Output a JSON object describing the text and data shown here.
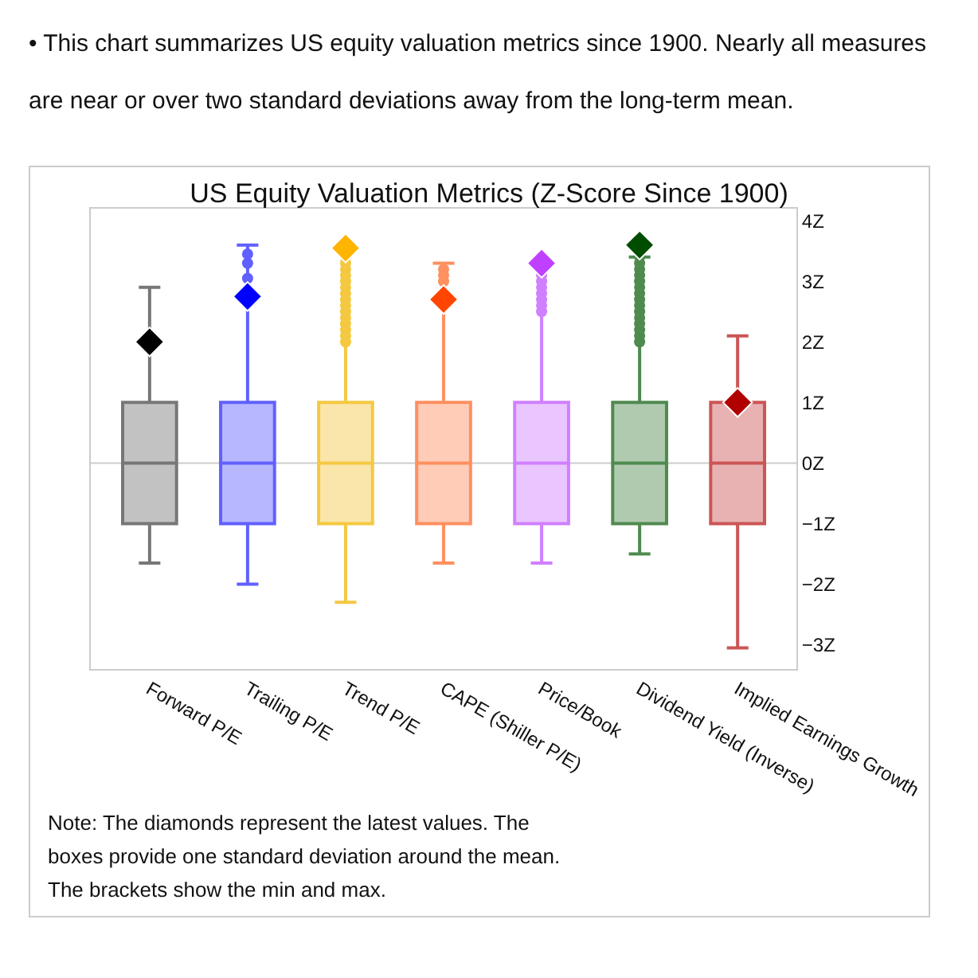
{
  "chart_data": {
    "type": "box",
    "title": "US Equity Valuation Metrics (Z-Score Since 1900)",
    "categories": [
      "Forward P/E",
      "Trailing P/E",
      "Trend P/E",
      "CAPE (Shiller P/E)",
      "Price/Book",
      "Dividend Yield (Inverse)",
      "Implied Earnings Growth"
    ],
    "series": [
      {
        "type": "box",
        "colors": [
          "#777777",
          "#6060ff",
          "#f5c842",
          "#ff9060",
          "#d080ff",
          "#4f8a4f",
          "#cc5555"
        ],
        "boxes": [
          {
            "low": -1.65,
            "q1": -1,
            "median": 0,
            "q3": 1,
            "high": 2.9
          },
          {
            "low": -2.0,
            "q1": -1,
            "median": 0,
            "q3": 1,
            "high": 3.6,
            "outliers": [
              3.05,
              3.3,
              3.45
            ]
          },
          {
            "low": -2.3,
            "q1": -1,
            "median": 0,
            "q3": 1,
            "high": 3.6,
            "outliers": [
              2.0,
              2.1,
              2.2,
              2.3,
              2.4,
              2.5,
              2.6,
              2.7,
              2.8,
              2.9,
              3.0,
              3.1,
              3.2,
              3.3,
              3.4
            ]
          },
          {
            "low": -1.65,
            "q1": -1,
            "median": 0,
            "q3": 1,
            "high": 3.3,
            "outliers": [
              3.0,
              3.1,
              3.2
            ]
          },
          {
            "low": -1.65,
            "q1": -1,
            "median": 0,
            "q3": 1,
            "high": 3.3,
            "outliers": [
              2.5,
              2.6,
              2.7,
              2.8,
              2.9,
              3.0,
              3.1
            ]
          },
          {
            "low": -1.5,
            "q1": -1,
            "median": 0,
            "q3": 1,
            "high": 3.4,
            "outliers": [
              2.0,
              2.1,
              2.2,
              2.3,
              2.4,
              2.5,
              2.6,
              2.7,
              2.8,
              2.9,
              3.0,
              3.1,
              3.2,
              3.3,
              3.4
            ]
          },
          {
            "low": -3.05,
            "q1": -1,
            "median": 0,
            "q3": 1,
            "high": 2.1
          }
        ]
      },
      {
        "type": "scatter",
        "marker": "diamond",
        "x": [
          "Forward P/E",
          "Trailing P/E",
          "Trend P/E",
          "CAPE (Shiller P/E)",
          "Price/Book",
          "Dividend Yield (Inverse)",
          "Implied Earnings Growth"
        ],
        "values": [
          2.0,
          2.75,
          3.55,
          2.7,
          3.3,
          3.6,
          1.0
        ],
        "colors": [
          "#000000",
          "#0000ff",
          "#ffb400",
          "#ff4500",
          "#c040ff",
          "#004d00",
          "#b00000"
        ]
      }
    ],
    "ylim": [
      -3.4,
      4.2
    ],
    "yticks": [
      {
        "value": 4,
        "label": "4Z"
      },
      {
        "value": 3,
        "label": "3Z"
      },
      {
        "value": 2,
        "label": "2Z"
      },
      {
        "value": 1,
        "label": "1Z"
      },
      {
        "value": 0,
        "label": "0Z"
      },
      {
        "value": -1,
        "label": "−1Z"
      },
      {
        "value": -2,
        "label": "−2Z"
      },
      {
        "value": -3,
        "label": "−3Z"
      }
    ],
    "ref_lines": [
      {
        "axis": "y",
        "value": 0,
        "color": "#cccccc"
      }
    ],
    "grid": false,
    "annotations": [
      "• This chart summarizes US equity valuation metrics since 1900. Nearly all measures are near or over two standard deviations away from the long-term mean.",
      "Note: The diamonds represent the latest values. The boxes provide one standard deviation around the mean. The brackets show the min and max."
    ]
  }
}
